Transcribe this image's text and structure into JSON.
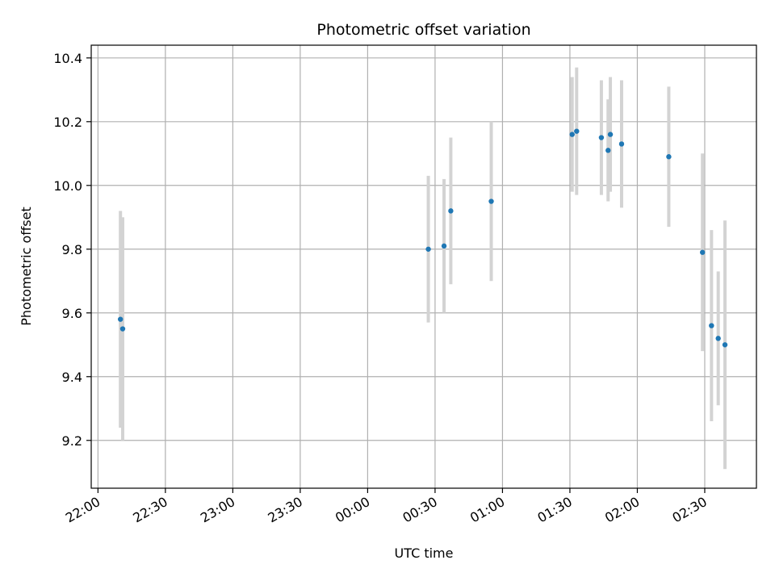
{
  "chart_data": {
    "type": "scatter",
    "title": "Photometric offset variation",
    "xlabel": "UTC time",
    "ylabel": "Photometric offset",
    "grid": true,
    "x_tick_labels": [
      "22:00",
      "22:30",
      "23:00",
      "23:30",
      "00:00",
      "00:30",
      "01:00",
      "01:30",
      "02:00",
      "02:30"
    ],
    "y_tick_labels": [
      "9.2",
      "9.4",
      "9.6",
      "9.8",
      "10.0",
      "10.2",
      "10.4"
    ],
    "xlim": [
      "21:57",
      "02:53"
    ],
    "ylim": [
      9.05,
      10.44
    ],
    "colors": {
      "point": "#1f77b4",
      "errorbar": "#d3d3d3",
      "grid": "#b0b0b0"
    },
    "series": [
      {
        "points": [
          {
            "x": "22:10",
            "y": 9.58,
            "err": 0.34
          },
          {
            "x": "22:11",
            "y": 9.55,
            "err": 0.35
          },
          {
            "x": "00:27",
            "y": 9.8,
            "err": 0.23
          },
          {
            "x": "00:34",
            "y": 9.81,
            "err": 0.21
          },
          {
            "x": "00:37",
            "y": 9.92,
            "err": 0.23
          },
          {
            "x": "00:55",
            "y": 9.95,
            "err": 0.25
          },
          {
            "x": "01:31",
            "y": 10.16,
            "err": 0.18
          },
          {
            "x": "01:33",
            "y": 10.17,
            "err": 0.2
          },
          {
            "x": "01:44",
            "y": 10.15,
            "err": 0.18
          },
          {
            "x": "01:47",
            "y": 10.11,
            "err": 0.16
          },
          {
            "x": "01:48",
            "y": 10.16,
            "err": 0.18
          },
          {
            "x": "01:53",
            "y": 10.13,
            "err": 0.2
          },
          {
            "x": "02:14",
            "y": 10.09,
            "err": 0.22
          },
          {
            "x": "02:29",
            "y": 9.79,
            "err": 0.31
          },
          {
            "x": "02:33",
            "y": 9.56,
            "err": 0.3
          },
          {
            "x": "02:36",
            "y": 9.52,
            "err": 0.21
          },
          {
            "x": "02:39",
            "y": 9.5,
            "err": 0.39
          }
        ]
      }
    ]
  }
}
